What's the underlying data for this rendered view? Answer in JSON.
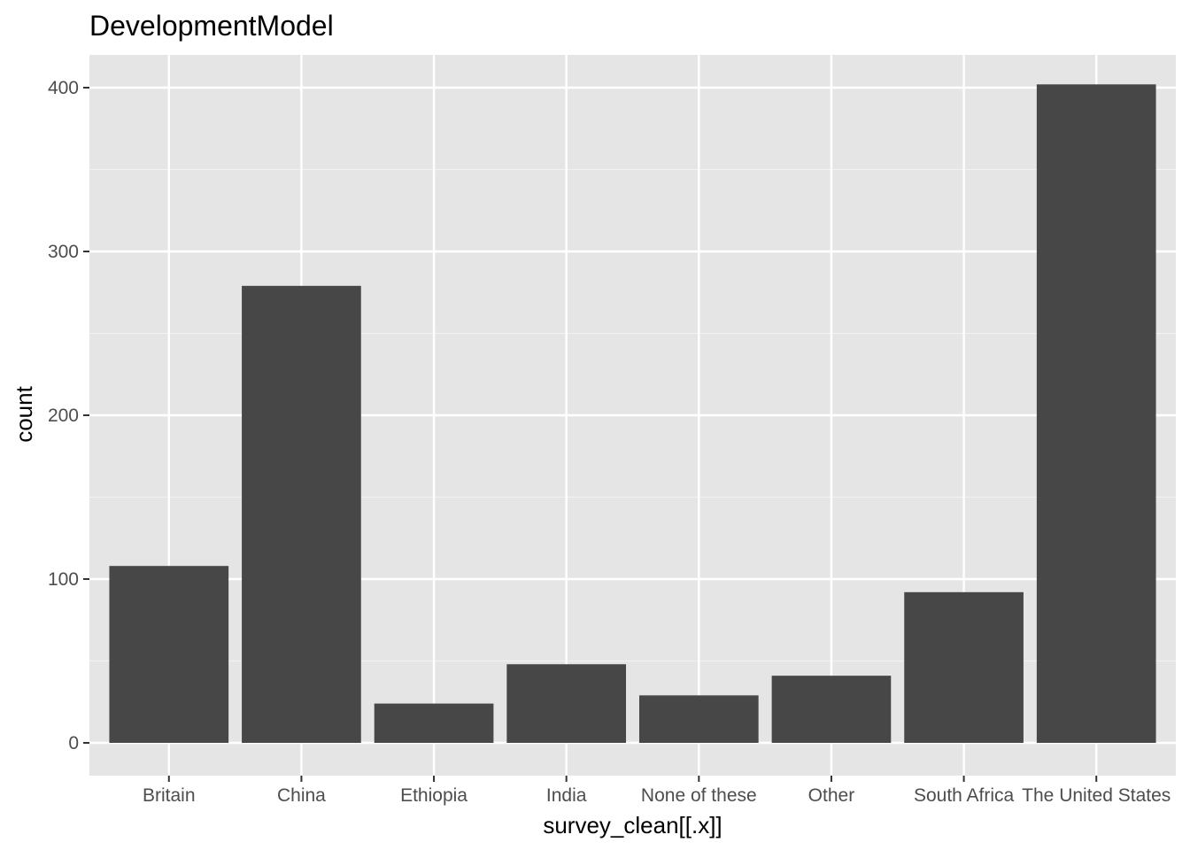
{
  "chart_data": {
    "type": "bar",
    "title": "DevelopmentModel",
    "xlabel": "survey_clean[[.x]]",
    "ylabel": "count",
    "categories": [
      "Britain",
      "China",
      "Ethiopia",
      "India",
      "None of these",
      "Other",
      "South Africa",
      "The United States"
    ],
    "values": [
      108,
      279,
      24,
      48,
      29,
      41,
      92,
      402
    ],
    "ylim": [
      -20,
      420
    ],
    "yticks": [
      0,
      100,
      200,
      300,
      400
    ],
    "grid": true,
    "legend": "none",
    "colors": {
      "bar": "#474747",
      "panel": "#e5e5e5",
      "grid_major": "#ffffff",
      "grid_minor": "#f2f2f2",
      "tick_mark": "#333333",
      "tick_text": "#4d4d4d"
    }
  }
}
